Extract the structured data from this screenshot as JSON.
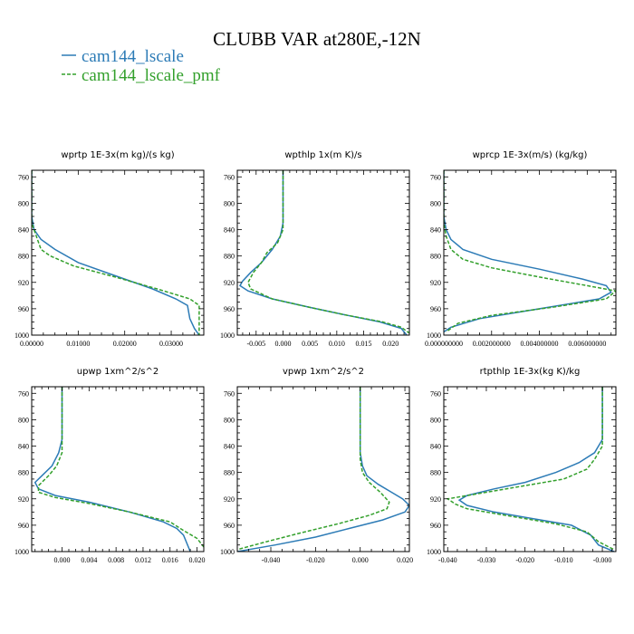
{
  "figure": {
    "title": "CLUBB VAR at280E,-12N",
    "legend": [
      {
        "label": "cam144_lscale",
        "color": "#2c7bb6",
        "dash": "none"
      },
      {
        "label": "cam144_lscale_pmf",
        "color": "#33a02c",
        "dash": "4,2"
      }
    ]
  },
  "chart_data": [
    {
      "type": "line",
      "title": "wprtp   1E-3x(m kg)/(s kg)",
      "xlim": [
        0,
        0.037
      ],
      "ylim": [
        1000,
        750
      ],
      "xticks": [
        0,
        0.01,
        0.02,
        0.03
      ],
      "xtick_labels": [
        "0.00000",
        "0.01000",
        "0.02000",
        "0.03000"
      ],
      "yticks": [
        760,
        800,
        840,
        880,
        920,
        960,
        1000
      ],
      "ytick_labels": [
        "760",
        "800",
        "840",
        "880",
        "920",
        "960",
        "1000"
      ],
      "series": [
        {
          "name": "cam144_lscale",
          "points": [
            [
              0,
              750
            ],
            [
              0,
              820
            ],
            [
              0.0005,
              840
            ],
            [
              0.002,
              855
            ],
            [
              0.005,
              870
            ],
            [
              0.01,
              890
            ],
            [
              0.018,
              910
            ],
            [
              0.026,
              930
            ],
            [
              0.031,
              945
            ],
            [
              0.0335,
              955
            ],
            [
              0.034,
              975
            ],
            [
              0.035,
              990
            ],
            [
              0.036,
              1000
            ]
          ]
        },
        {
          "name": "cam144_lscale_pmf",
          "points": [
            [
              0,
              750
            ],
            [
              0,
              830
            ],
            [
              0.001,
              850
            ],
            [
              0.002,
              870
            ],
            [
              0.004,
              880
            ],
            [
              0.009,
              895
            ],
            [
              0.018,
              912
            ],
            [
              0.027,
              930
            ],
            [
              0.034,
              945
            ],
            [
              0.036,
              955
            ],
            [
              0.036,
              1000
            ]
          ]
        }
      ]
    },
    {
      "type": "line",
      "title": "wpthlp   1x(m K)/s",
      "xlim": [
        -0.0085,
        0.0235
      ],
      "ylim": [
        1000,
        750
      ],
      "xticks": [
        -0.005,
        0,
        0.005,
        0.01,
        0.015,
        0.02
      ],
      "xtick_labels": [
        "-0.005",
        "0.000",
        "0.005",
        "0.010",
        "0.015",
        "0.020"
      ],
      "yticks": [
        760,
        800,
        840,
        880,
        920,
        960,
        1000
      ],
      "ytick_labels": [
        "760",
        "800",
        "840",
        "880",
        "920",
        "960",
        "1000"
      ],
      "series": [
        {
          "name": "cam144_lscale",
          "points": [
            [
              0,
              750
            ],
            [
              0,
              830
            ],
            [
              -0.0005,
              850
            ],
            [
              -0.002,
              870
            ],
            [
              -0.004,
              890
            ],
            [
              -0.006,
              905
            ],
            [
              -0.0075,
              918
            ],
            [
              -0.008,
              925
            ],
            [
              -0.0065,
              933
            ],
            [
              -0.002,
              945
            ],
            [
              0.005,
              958
            ],
            [
              0.012,
              970
            ],
            [
              0.018,
              980
            ],
            [
              0.022,
              990
            ],
            [
              0.023,
              1000
            ]
          ]
        },
        {
          "name": "cam144_lscale_pmf",
          "points": [
            [
              0,
              750
            ],
            [
              0,
              840
            ],
            [
              -0.001,
              860
            ],
            [
              -0.003,
              875
            ],
            [
              -0.004,
              890
            ],
            [
              -0.0055,
              905
            ],
            [
              -0.0065,
              920
            ],
            [
              -0.006,
              930
            ],
            [
              -0.002,
              945
            ],
            [
              0.005,
              958
            ],
            [
              0.012,
              970
            ],
            [
              0.0185,
              980
            ],
            [
              0.022,
              988
            ],
            [
              0.0235,
              997
            ]
          ]
        }
      ]
    },
    {
      "type": "line",
      "title": "wprcp   1E-3x(m/s) (kg/kg)",
      "xlim": [
        0,
        0.0072
      ],
      "ylim": [
        1000,
        750
      ],
      "xticks": [
        0,
        0.002,
        0.004,
        0.006
      ],
      "xtick_labels": [
        "0.000000000",
        "0.002000000",
        "0.004000000",
        "0.006000000"
      ],
      "yticks": [
        760,
        800,
        840,
        880,
        920,
        960,
        1000
      ],
      "ytick_labels": [
        "760",
        "800",
        "840",
        "880",
        "920",
        "960",
        "1000"
      ],
      "series": [
        {
          "name": "cam144_lscale",
          "points": [
            [
              0,
              750
            ],
            [
              0,
              820
            ],
            [
              0.0001,
              840
            ],
            [
              0.0003,
              855
            ],
            [
              0.0008,
              870
            ],
            [
              0.002,
              885
            ],
            [
              0.004,
              900
            ],
            [
              0.0058,
              915
            ],
            [
              0.0068,
              925
            ],
            [
              0.007,
              935
            ],
            [
              0.0065,
              945
            ],
            [
              0.004,
              960
            ],
            [
              0.0015,
              975
            ],
            [
              0.0003,
              988
            ],
            [
              0,
              995
            ]
          ]
        },
        {
          "name": "cam144_lscale_pmf",
          "points": [
            [
              0,
              750
            ],
            [
              0,
              830
            ],
            [
              0.0001,
              850
            ],
            [
              0.0003,
              870
            ],
            [
              0.0008,
              885
            ],
            [
              0.002,
              898
            ],
            [
              0.004,
              912
            ],
            [
              0.006,
              925
            ],
            [
              0.0072,
              933
            ],
            [
              0.0068,
              945
            ],
            [
              0.0045,
              958
            ],
            [
              0.002,
              970
            ],
            [
              0.0006,
              982
            ],
            [
              0.0001,
              995
            ]
          ]
        }
      ]
    },
    {
      "type": "line",
      "title": "upwp   1xm^2/s^2",
      "xlim": [
        -0.0045,
        0.021
      ],
      "ylim": [
        1000,
        750
      ],
      "xticks": [
        0,
        0.004,
        0.008,
        0.012,
        0.016,
        0.02
      ],
      "xtick_labels": [
        "0.000",
        "0.004",
        "0.008",
        "0.012",
        "0.016",
        "0.020"
      ],
      "yticks": [
        760,
        800,
        840,
        880,
        920,
        960,
        1000
      ],
      "ytick_labels": [
        "760",
        "800",
        "840",
        "880",
        "920",
        "960",
        "1000"
      ],
      "series": [
        {
          "name": "cam144_lscale",
          "points": [
            [
              0,
              750
            ],
            [
              0,
              830
            ],
            [
              -0.0005,
              850
            ],
            [
              -0.0015,
              870
            ],
            [
              -0.003,
              885
            ],
            [
              -0.004,
              895
            ],
            [
              -0.0035,
              905
            ],
            [
              -0.001,
              915
            ],
            [
              0.004,
              925
            ],
            [
              0.01,
              940
            ],
            [
              0.015,
              955
            ],
            [
              0.017,
              965
            ],
            [
              0.018,
              975
            ],
            [
              0.019,
              1000
            ]
          ]
        },
        {
          "name": "cam144_lscale_pmf",
          "points": [
            [
              0,
              750
            ],
            [
              0,
              850
            ],
            [
              -0.0008,
              870
            ],
            [
              -0.002,
              885
            ],
            [
              -0.0035,
              900
            ],
            [
              -0.0035,
              910
            ],
            [
              -0.001,
              918
            ],
            [
              0.004,
              927
            ],
            [
              0.01,
              940
            ],
            [
              0.016,
              955
            ],
            [
              0.018,
              968
            ],
            [
              0.02,
              980
            ],
            [
              0.021,
              993
            ]
          ]
        }
      ]
    },
    {
      "type": "line",
      "title": "vpwp   1xm^2/s^2",
      "xlim": [
        -0.055,
        0.022
      ],
      "ylim": [
        1000,
        750
      ],
      "xticks": [
        -0.04,
        -0.02,
        0,
        0.02
      ],
      "xtick_labels": [
        "-0.040",
        "-0.020",
        "0.000",
        "0.020"
      ],
      "yticks": [
        760,
        800,
        840,
        880,
        920,
        960,
        1000
      ],
      "ytick_labels": [
        "760",
        "800",
        "840",
        "880",
        "920",
        "960",
        "1000"
      ],
      "series": [
        {
          "name": "cam144_lscale",
          "points": [
            [
              0,
              750
            ],
            [
              0,
              850
            ],
            [
              0.001,
              870
            ],
            [
              0.003,
              885
            ],
            [
              0.008,
              898
            ],
            [
              0.014,
              910
            ],
            [
              0.019,
              920
            ],
            [
              0.022,
              930
            ],
            [
              0.02,
              940
            ],
            [
              0.01,
              952
            ],
            [
              -0.005,
              965
            ],
            [
              -0.02,
              978
            ],
            [
              -0.038,
              990
            ],
            [
              -0.055,
              1000
            ]
          ]
        },
        {
          "name": "cam144_lscale_pmf",
          "points": [
            [
              0,
              750
            ],
            [
              0,
              860
            ],
            [
              0.001,
              880
            ],
            [
              0.004,
              895
            ],
            [
              0.009,
              910
            ],
            [
              0.013,
              925
            ],
            [
              0.012,
              935
            ],
            [
              0.004,
              945
            ],
            [
              -0.01,
              958
            ],
            [
              -0.027,
              972
            ],
            [
              -0.042,
              985
            ],
            [
              -0.055,
              997
            ]
          ]
        }
      ]
    },
    {
      "type": "line",
      "title": "rtpthlp   1E-3x(kg K)/kg",
      "xlim": [
        -0.041,
        0.0035
      ],
      "ylim": [
        1000,
        750
      ],
      "xticks": [
        -0.04,
        -0.03,
        -0.02,
        -0.01,
        0
      ],
      "xtick_labels": [
        "-0.040",
        "-0.030",
        "-0.020",
        "-0.010",
        "-0.000"
      ],
      "yticks": [
        760,
        800,
        840,
        880,
        920,
        960,
        1000
      ],
      "ytick_labels": [
        "760",
        "800",
        "840",
        "880",
        "920",
        "960",
        "1000"
      ],
      "series": [
        {
          "name": "cam144_lscale",
          "points": [
            [
              0,
              750
            ],
            [
              0,
              830
            ],
            [
              -0.002,
              850
            ],
            [
              -0.006,
              865
            ],
            [
              -0.012,
              880
            ],
            [
              -0.02,
              895
            ],
            [
              -0.028,
              905
            ],
            [
              -0.035,
              915
            ],
            [
              -0.037,
              922
            ],
            [
              -0.035,
              930
            ],
            [
              -0.028,
              940
            ],
            [
              -0.018,
              950
            ],
            [
              -0.008,
              960
            ],
            [
              -0.003,
              975
            ],
            [
              -0.001,
              990
            ],
            [
              0.003,
              1000
            ]
          ]
        },
        {
          "name": "cam144_lscale_pmf",
          "points": [
            [
              0,
              750
            ],
            [
              0,
              840
            ],
            [
              -0.002,
              860
            ],
            [
              -0.004,
              875
            ],
            [
              -0.01,
              890
            ],
            [
              -0.02,
              900
            ],
            [
              -0.03,
              910
            ],
            [
              -0.04,
              920
            ],
            [
              -0.038,
              928
            ],
            [
              -0.035,
              935
            ],
            [
              -0.025,
              945
            ],
            [
              -0.012,
              958
            ],
            [
              -0.004,
              970
            ],
            [
              -0.001,
              985
            ],
            [
              0.003,
              997
            ]
          ]
        }
      ]
    }
  ]
}
